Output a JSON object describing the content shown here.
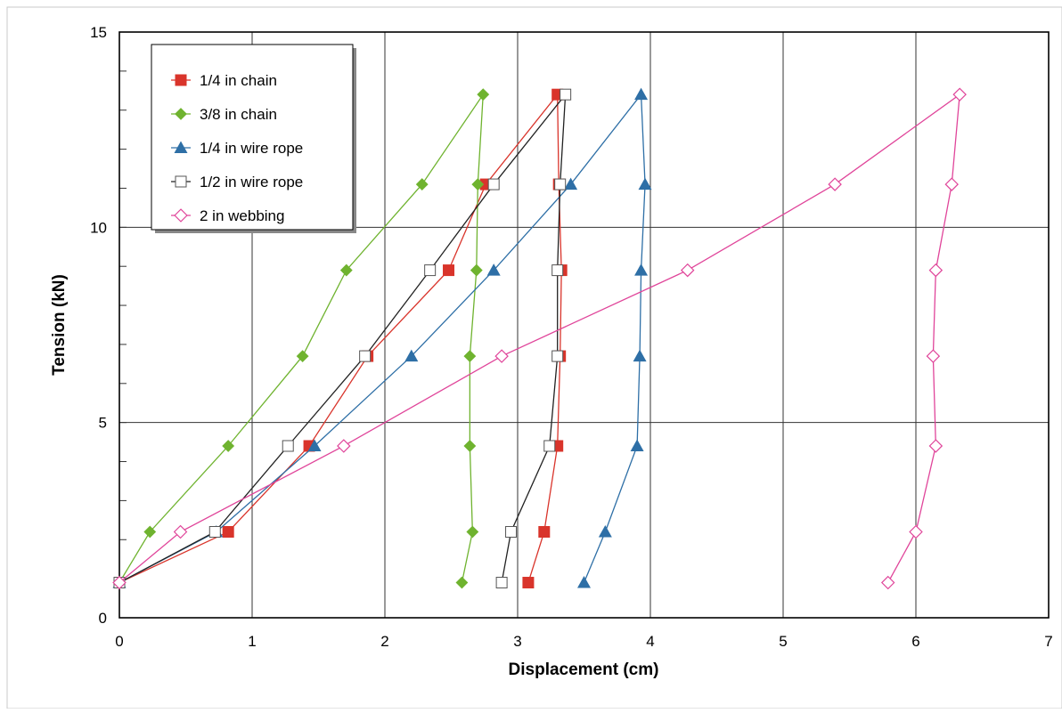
{
  "chart_data": {
    "type": "scatter",
    "title": "",
    "xlabel": "Displacement  (cm)",
    "ylabel": "Tension  (kN)",
    "xlim": [
      0,
      7
    ],
    "ylim": [
      0,
      15
    ],
    "x_ticks": [
      0,
      1,
      2,
      3,
      4,
      5,
      6,
      7
    ],
    "y_ticks": [
      0,
      5,
      10,
      15
    ],
    "x_tick_labels": [
      "0",
      "1",
      "2",
      "3",
      "4",
      "5",
      "6",
      "7"
    ],
    "y_tick_labels": [
      "0",
      "5",
      "10",
      "15"
    ],
    "grid": true,
    "legend_position": "top-left",
    "series": [
      {
        "name": "1/4 in chain",
        "color": "#d9342b",
        "marker": "square-filled",
        "x": [
          0,
          0.82,
          1.43,
          1.87,
          2.48,
          2.76,
          3.3,
          3.31,
          3.33,
          3.32,
          3.3,
          3.2,
          3.08
        ],
        "y": [
          0.9,
          2.2,
          4.4,
          6.7,
          8.9,
          11.1,
          13.4,
          11.1,
          8.9,
          6.7,
          4.4,
          2.2,
          0.9
        ]
      },
      {
        "name": "3/8 in chain",
        "color": "#6fb32f",
        "marker": "diamond-filled",
        "x": [
          0,
          0.23,
          0.82,
          1.38,
          1.71,
          2.28,
          2.74,
          2.7,
          2.69,
          2.64,
          2.64,
          2.66,
          2.58
        ],
        "y": [
          0.9,
          2.2,
          4.4,
          6.7,
          8.9,
          11.1,
          13.4,
          11.1,
          8.9,
          6.7,
          4.4,
          2.2,
          0.9
        ]
      },
      {
        "name": "1/4 in wire rope",
        "color": "#2e6fa6",
        "marker": "triangle-filled",
        "x": [
          0,
          0.73,
          1.47,
          2.2,
          2.82,
          3.4,
          3.93,
          3.96,
          3.93,
          3.92,
          3.9,
          3.66,
          3.5
        ],
        "y": [
          0.9,
          2.2,
          4.4,
          6.7,
          8.9,
          11.1,
          13.4,
          11.1,
          8.9,
          6.7,
          4.4,
          2.2,
          0.9
        ]
      },
      {
        "name": "1/2 in wire rope",
        "color": "#222222",
        "marker": "square-open",
        "x": [
          0,
          0.72,
          1.27,
          1.85,
          2.34,
          2.82,
          3.36,
          3.32,
          3.3,
          3.3,
          3.24,
          2.95,
          2.88
        ],
        "y": [
          0.9,
          2.2,
          4.4,
          6.7,
          8.9,
          11.1,
          13.4,
          11.1,
          8.9,
          6.7,
          4.4,
          2.2,
          0.9
        ]
      },
      {
        "name": "2 in webbing",
        "color": "#e0459a",
        "marker": "diamond-open",
        "x": [
          0,
          0.46,
          1.69,
          2.88,
          4.28,
          5.39,
          6.33,
          6.27,
          6.15,
          6.13,
          6.15,
          6.0,
          5.79
        ],
        "y": [
          0.9,
          2.2,
          4.4,
          6.7,
          8.9,
          11.1,
          13.4,
          11.1,
          8.9,
          6.7,
          4.4,
          2.2,
          0.9
        ]
      }
    ]
  }
}
